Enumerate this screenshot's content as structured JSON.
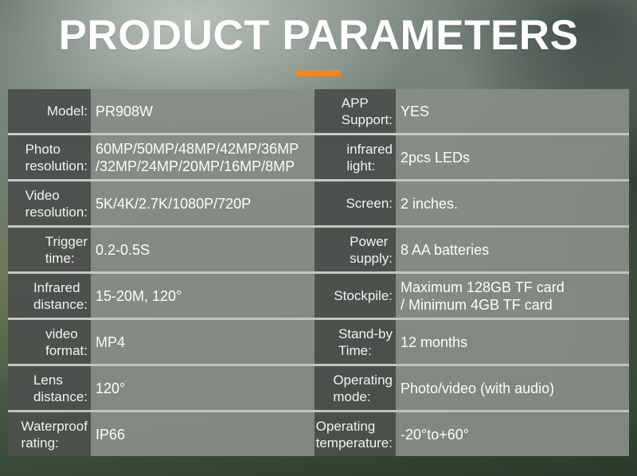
{
  "title": "PRODUCT PARAMETERS",
  "colors": {
    "accent_bar": "#F5861F",
    "label_cell_overlay": "rgba(6,8,6,0.62)",
    "value_cell_overlay": "rgba(26,30,26,0.36)",
    "separator_line": "#CED5CE",
    "title_text": "#FFFFFF"
  },
  "table": {
    "rows": [
      {
        "left_label": "Model:",
        "left_value": "PR908W",
        "right_label": "APP\nSupport:",
        "right_value": "YES"
      },
      {
        "left_label": "Photo\nresolution:",
        "left_value": "60MP/50MP/48MP/42MP/36MP\n/32MP/24MP/20MP/16MP/8MP",
        "right_label": "infrared\nlight:",
        "right_value": "2pcs LEDs"
      },
      {
        "left_label": "Video\nresolution:",
        "left_value": "5K/4K/2.7K/1080P/720P",
        "right_label": "Screen:",
        "right_value": "2 inches."
      },
      {
        "left_label": "Trigger\ntime:",
        "left_value": "0.2-0.5S",
        "right_label": "Power\nsupply:",
        "right_value": "8 AA batteries"
      },
      {
        "left_label": "Infrared\ndistance:",
        "left_value": "15-20M, 120°",
        "right_label": "Stockpile:",
        "right_value": "Maximum 128GB TF card\n/ Minimum 4GB TF card"
      },
      {
        "left_label": "video\nformat:",
        "left_value": "MP4",
        "right_label": "Stand-by\nTime:",
        "right_value": "12 months"
      },
      {
        "left_label": "Lens\ndistance:",
        "left_value": "120°",
        "right_label": "Operating\nmode:",
        "right_value": "Photo/video (with audio)"
      },
      {
        "left_label": "Waterproof\nrating:",
        "left_value": "IP66",
        "right_label": "Operating\ntemperature:",
        "right_value": "-20°to+60°"
      }
    ]
  }
}
